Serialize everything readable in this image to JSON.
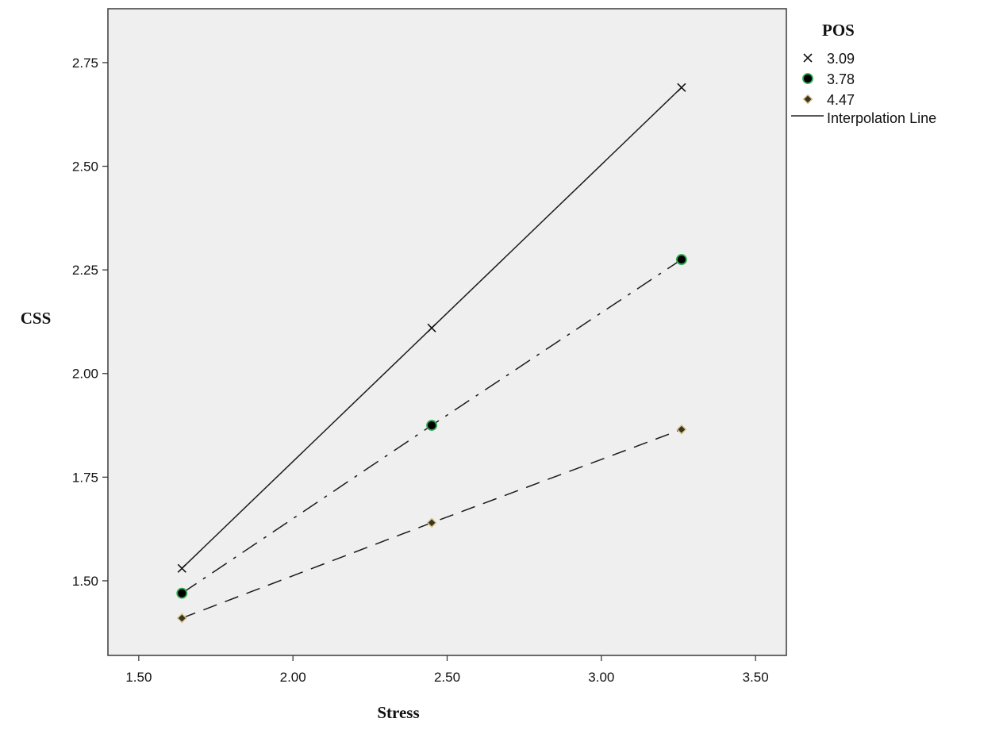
{
  "chart_data": {
    "type": "line",
    "xlabel": "Stress",
    "ylabel": "CSS",
    "xlim": [
      1.4,
      3.6
    ],
    "ylim": [
      1.32,
      2.88
    ],
    "x_ticks": [
      "1.50",
      "2.00",
      "2.50",
      "3.00",
      "3.50"
    ],
    "y_ticks": [
      "1.50",
      "1.75",
      "2.00",
      "2.25",
      "2.50",
      "2.75"
    ],
    "x": [
      1.64,
      2.45,
      3.26
    ],
    "series": [
      {
        "name": "3.09",
        "values": [
          1.53,
          2.11,
          2.69
        ],
        "marker": "x",
        "line": "solid",
        "marker_color": "#000000"
      },
      {
        "name": "3.78",
        "values": [
          1.47,
          1.875,
          2.275
        ],
        "marker": "circle",
        "line": "dash-dot",
        "marker_color": "#000000",
        "marker_edge": "#2ea84a"
      },
      {
        "name": "4.47",
        "values": [
          1.41,
          1.64,
          1.865
        ],
        "marker": "diamond",
        "line": "dashed",
        "marker_color": "#3b3520",
        "marker_edge": "#d8c890"
      }
    ],
    "legend": {
      "title": "POS",
      "line_label": "Interpolation Line",
      "placement": "right"
    },
    "plot_background": "#efefef",
    "grid": false
  }
}
